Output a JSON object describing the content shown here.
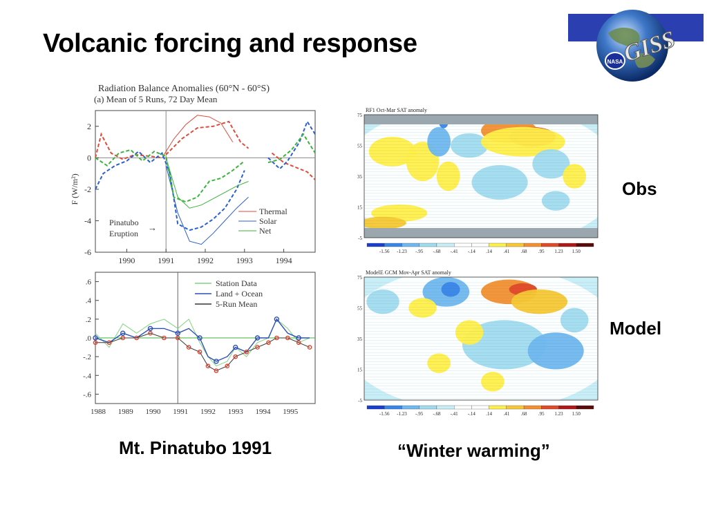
{
  "slide": {
    "title": "Volcanic forcing and response",
    "caption_left": "Mt. Pinatubo 1991",
    "caption_right": "“Winter warming”",
    "label_obs": "Obs",
    "label_model": "Model",
    "logo_text": "GISS",
    "logo_badge": "NASA"
  },
  "colors": {
    "thermal": "#e04a3a",
    "solar": "#2a5fd0",
    "net": "#3ab43a",
    "station": "#7fd37f",
    "land_ocean": "#2a4fb8",
    "run_mean": "#333333",
    "model_point": "#e0402a",
    "logo_band": "#2b3fb0"
  },
  "colorbar": {
    "ticks": [
      "-1.56",
      "-1.23",
      "-.95",
      "-.68",
      "-.41",
      "-.14",
      ".14",
      ".41",
      ".68",
      ".95",
      "1.23",
      "1.50"
    ],
    "colors": [
      "#1a3fd0",
      "#3a86e8",
      "#6fb8f0",
      "#a0dcf0",
      "#c8eef8",
      "#ffffff",
      "#ffffff",
      "#fff04a",
      "#f7c834",
      "#f29030",
      "#e04a2a",
      "#b01818",
      "#5a0a0a"
    ]
  },
  "chart_data": [
    {
      "type": "line",
      "title": "Radiation Balance Anomalies (60°N - 60°S)",
      "subtitle": "(a) Mean of 5 Runs, 72 Day Mean",
      "xlabel": "",
      "ylabel": "F (W/m²)",
      "xlim": [
        1989.2,
        1994.8
      ],
      "ylim": [
        -6,
        3
      ],
      "x_ticks": [
        "1990",
        "1991",
        "1992",
        "1993",
        "1994"
      ],
      "y_ticks": [
        "2",
        "0",
        "-2",
        "-4",
        "-6"
      ],
      "annotation": [
        "Pinatubo",
        "Eruption"
      ],
      "annotation_arrow": "→",
      "legend_position": "lower-right",
      "series": [
        {
          "name": "Thermal",
          "dashed_x": [
            1989.2,
            1989.35,
            1989.6,
            1989.9,
            1990.2,
            1990.6,
            1990.9
          ],
          "dashed_y": [
            0.0,
            1.5,
            0.3,
            -0.1,
            0.2,
            0.1,
            0.0
          ],
          "solid_x": [
            1990.9,
            1991.2,
            1991.5,
            1991.8,
            1992.1,
            1992.4,
            1992.7
          ],
          "solid_y": [
            0.0,
            1.2,
            2.1,
            2.7,
            2.6,
            2.2,
            1.0
          ],
          "dashed2_x": [
            1991.0,
            1991.4,
            1991.8,
            1992.2,
            1992.6,
            1992.9,
            1993.1
          ],
          "dashed2_y": [
            0.2,
            1.2,
            1.9,
            2.0,
            2.3,
            1.0,
            0.6
          ],
          "dashed3_x": [
            1993.7,
            1994.0,
            1994.3,
            1994.6,
            1994.8
          ],
          "dashed3_y": [
            0.3,
            -0.3,
            -0.6,
            -0.9,
            -1.4
          ]
        },
        {
          "name": "Solar",
          "dashed_x": [
            1989.2,
            1989.4,
            1989.7,
            1990.0,
            1990.3,
            1990.6,
            1990.9,
            1991.1,
            1991.3,
            1991.6,
            1991.9,
            1992.2,
            1992.5,
            1992.8,
            1993.0
          ],
          "dashed_y": [
            -2.0,
            -1.0,
            -0.5,
            -0.2,
            0.4,
            -0.3,
            0.3,
            -1.0,
            -4.2,
            -4.6,
            -4.4,
            -3.9,
            -3.2,
            -2.0,
            -0.8
          ],
          "solid_x": [
            1991.0,
            1991.3,
            1991.6,
            1991.9,
            1992.2,
            1992.5,
            1992.8,
            1993.1
          ],
          "solid_y": [
            -0.5,
            -3.5,
            -5.3,
            -5.5,
            -4.8,
            -4.0,
            -3.2,
            -2.5
          ],
          "dashed2_x": [
            1993.6,
            1993.9,
            1994.1,
            1994.4,
            1994.6,
            1994.8
          ],
          "dashed2_y": [
            0.0,
            -0.7,
            -0.2,
            1.0,
            2.3,
            1.5
          ]
        },
        {
          "name": "Net",
          "dashed_x": [
            1989.2,
            1989.5,
            1989.8,
            1990.1,
            1990.4,
            1990.7,
            1991.0,
            1991.2,
            1991.5,
            1991.8,
            1992.1,
            1992.4,
            1992.7,
            1993.0
          ],
          "dashed_y": [
            0.0,
            -0.5,
            0.3,
            0.5,
            -0.2,
            0.4,
            0.1,
            -2.5,
            -2.8,
            -2.5,
            -1.5,
            -1.3,
            -0.8,
            -0.2
          ],
          "solid_x": [
            1991.0,
            1991.3,
            1991.6,
            1991.9,
            1992.2,
            1992.5,
            1992.8,
            1993.1
          ],
          "solid_y": [
            0.0,
            -2.5,
            -3.2,
            -3.0,
            -2.6,
            -2.2,
            -1.8,
            -1.5
          ],
          "dashed2_x": [
            1993.6,
            1993.9,
            1994.2,
            1994.5,
            1994.8
          ],
          "dashed2_y": [
            -0.3,
            -0.1,
            0.5,
            1.5,
            0.3
          ]
        }
      ]
    },
    {
      "type": "line",
      "title": "",
      "xlabel": "",
      "ylabel": "",
      "xlim": [
        1988,
        1996
      ],
      "ylim": [
        -0.7,
        0.7
      ],
      "x_ticks": [
        "1988",
        "1989",
        "1990",
        "1991",
        "1992",
        "1993",
        "1994",
        "1995"
      ],
      "y_ticks": [
        ".6",
        ".4",
        ".2",
        ".0",
        "-.2",
        "-.4",
        "-.6"
      ],
      "legend_position": "top-right",
      "series": [
        {
          "name": "Station Data",
          "x": [
            1988.0,
            1988.5,
            1989.0,
            1989.5,
            1990.0,
            1990.5,
            1991.0,
            1991.4,
            1991.8,
            1992.1,
            1992.4,
            1992.8,
            1993.1,
            1993.5,
            1993.9,
            1994.3,
            1994.6,
            1995.0,
            1995.4,
            1995.8
          ],
          "y": [
            0.05,
            -0.1,
            0.15,
            0.05,
            0.15,
            0.2,
            0.1,
            0.2,
            -0.05,
            -0.2,
            -0.3,
            -0.25,
            -0.1,
            -0.2,
            -0.05,
            0.0,
            0.2,
            0.1,
            -0.05,
            0.0
          ]
        },
        {
          "name": "Land + Ocean",
          "x": [
            1988.0,
            1988.5,
            1989.0,
            1989.5,
            1990.0,
            1990.5,
            1991.0,
            1991.4,
            1991.8,
            1992.1,
            1992.4,
            1992.8,
            1993.1,
            1993.5,
            1993.9,
            1994.3,
            1994.6,
            1995.0,
            1995.4,
            1995.8
          ],
          "y": [
            0.0,
            -0.05,
            0.05,
            0.0,
            0.1,
            0.1,
            0.05,
            0.1,
            0.0,
            -0.2,
            -0.25,
            -0.2,
            -0.1,
            -0.15,
            0.0,
            0.0,
            0.2,
            0.05,
            0.0,
            0.0
          ]
        },
        {
          "name": "5-Run Mean",
          "x": [
            1988.0,
            1988.5,
            1989.0,
            1989.5,
            1990.0,
            1990.5,
            1991.0,
            1991.4,
            1991.8,
            1992.1,
            1992.4,
            1992.8,
            1993.1,
            1993.5,
            1993.9,
            1994.3,
            1994.6,
            1995.0,
            1995.4,
            1995.8
          ],
          "y": [
            -0.05,
            -0.05,
            0.0,
            0.0,
            0.05,
            0.0,
            0.0,
            -0.1,
            -0.15,
            -0.3,
            -0.35,
            -0.3,
            -0.2,
            -0.15,
            -0.1,
            -0.05,
            0.0,
            0.0,
            -0.05,
            -0.1
          ]
        }
      ]
    },
    {
      "type": "heatmap",
      "title": "RF1 Oct-Mar SAT anomaly",
      "ylabel_ticks": [
        "75",
        "55",
        "35",
        "15",
        "-5"
      ],
      "colorbar_ticks": [
        "-1.56",
        "-1.23",
        "-.95",
        "-.68",
        "-.41",
        "-.14",
        ".14",
        ".41",
        ".68",
        ".95",
        "1.23",
        "1.50"
      ]
    },
    {
      "type": "heatmap",
      "title": "ModelE GCM Mov-Apr SAT anomaly",
      "ylabel_ticks": [
        "75",
        "55",
        "35",
        "15",
        "-5"
      ],
      "colorbar_ticks": [
        "-1.56",
        "-1.23",
        "-.95",
        "-.68",
        "-.41",
        "-.14",
        ".14",
        ".41",
        ".68",
        ".95",
        "1.23",
        "1.50"
      ]
    }
  ]
}
